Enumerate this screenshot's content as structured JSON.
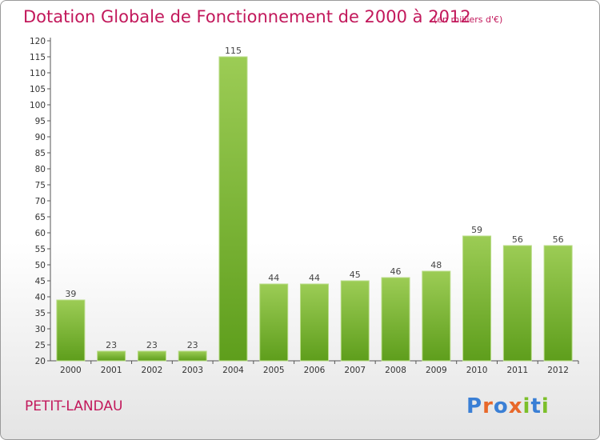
{
  "header": {
    "title": "Dotation Globale de Fonctionnement de 2000 à 2012",
    "unit": "(en milliers d'€)"
  },
  "footer": {
    "commune": "PETIT-LANDAU",
    "brand": "Proxiti"
  },
  "colors": {
    "title": "#c2185b",
    "bar_light": "#9ccc55",
    "bar_dark": "#5e9e1c",
    "brand_letters": [
      "#3a7fd5",
      "#e8682a",
      "#3a7fd5",
      "#e8682a",
      "#7cbf2a",
      "#3a7fd5",
      "#7cbf2a"
    ]
  },
  "chart_data": {
    "type": "bar",
    "title": "Dotation Globale de Fonctionnement de 2000 à 2012",
    "subtitle": "(en milliers d'€)",
    "categories": [
      "2000",
      "2001",
      "2002",
      "2003",
      "2004",
      "2005",
      "2006",
      "2007",
      "2008",
      "2009",
      "2010",
      "2011",
      "2012"
    ],
    "values": [
      39,
      23,
      23,
      23,
      115,
      44,
      44,
      45,
      46,
      48,
      59,
      56,
      56
    ],
    "ylim": [
      20,
      120
    ],
    "yticks": [
      20,
      25,
      30,
      35,
      40,
      45,
      50,
      55,
      60,
      65,
      70,
      75,
      80,
      85,
      90,
      95,
      100,
      105,
      110,
      115,
      120
    ],
    "grid": false,
    "data_labels": true,
    "legend": "none"
  }
}
